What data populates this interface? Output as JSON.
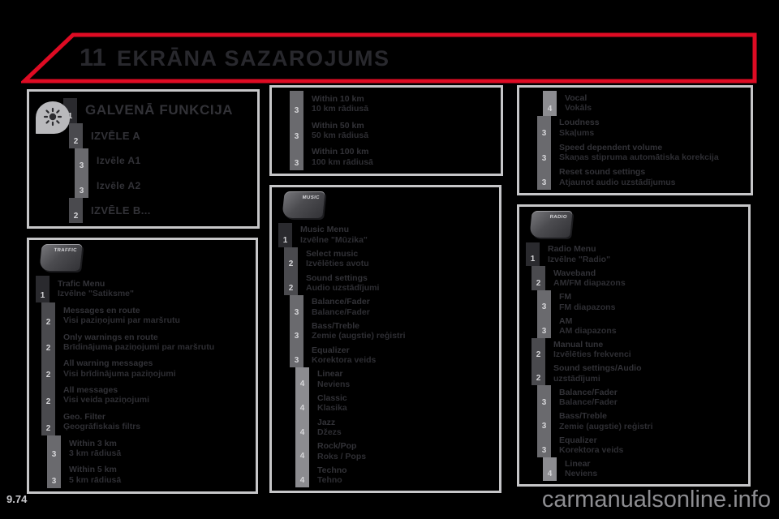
{
  "page": {
    "chapter": "11",
    "title": "EKRĀNA SAZAROJUMS",
    "page_number": "9.74",
    "watermark": "carmanualsonline.info"
  },
  "colors": {
    "accent_red": "#de0b23",
    "panel_border": "#c6c6c8",
    "level1_bar": "#2a2a2e",
    "level2_bar": "#4a4a4e",
    "level3_bar": "#6a6a6e",
    "level4_bar": "#8c8c90"
  },
  "panels": [
    {
      "name": "main-function",
      "icon": "brightness-icon",
      "items": [
        {
          "level": 1,
          "en": "GALVENĀ FUNKCIJA",
          "lv": ""
        },
        {
          "level": 2,
          "en": "IZVĒLE A",
          "lv": ""
        },
        {
          "level": 3,
          "en": "Izvēle A1",
          "lv": ""
        },
        {
          "level": 3,
          "en": "Izvēle A2",
          "lv": ""
        },
        {
          "level": 2,
          "en": "IZVĒLE B...",
          "lv": ""
        }
      ]
    },
    {
      "name": "traffic-menu",
      "key_label": "TRAFFIC",
      "items": [
        {
          "level": 1,
          "en": "Trafic Menu",
          "lv": "Izvēlne \"Satiksme\""
        },
        {
          "level": 2,
          "en": "Messages en route",
          "lv": "Visi paziņojumi par maršrutu"
        },
        {
          "level": 2,
          "en": "Only warnings en route",
          "lv": "Brīdinājuma paziņojumi par maršrutu"
        },
        {
          "level": 2,
          "en": "All warning messages",
          "lv": "Visi brīdinājuma paziņojumi"
        },
        {
          "level": 2,
          "en": "All messages",
          "lv": "Visi veida paziņojumi"
        },
        {
          "level": 2,
          "en": "Geo. Filter",
          "lv": "Ģeogrāfiskais filtrs"
        },
        {
          "level": 3,
          "en": "Within 3 km",
          "lv": "3 km rādiusā"
        },
        {
          "level": 3,
          "en": "Within 5 km",
          "lv": "5 km rādiusā"
        }
      ]
    },
    {
      "name": "traffic-menu-continued",
      "items": [
        {
          "level": 3,
          "en": "Within 10 km",
          "lv": "10 km rādiusā"
        },
        {
          "level": 3,
          "en": "Within 50 km",
          "lv": "50 km rādiusā"
        },
        {
          "level": 3,
          "en": "Within 100 km",
          "lv": "100 km rādiusā"
        }
      ]
    },
    {
      "name": "music-menu",
      "key_label": "MUSIC",
      "items": [
        {
          "level": 1,
          "en": "Music Menu",
          "lv": "Izvēlne \"Mūzika\""
        },
        {
          "level": 2,
          "en": "Select music",
          "lv": "Izvēlēties avotu"
        },
        {
          "level": 2,
          "en": "Sound settings",
          "lv": "Audio uzstādījumi"
        },
        {
          "level": 3,
          "en": "Balance/Fader",
          "lv": "Balance/Fader"
        },
        {
          "level": 3,
          "en": "Bass/Treble",
          "lv": "Zemie (augstie) reģistri"
        },
        {
          "level": 3,
          "en": "Equalizer",
          "lv": "Korektora veids"
        },
        {
          "level": 4,
          "en": "Linear",
          "lv": "Neviens"
        },
        {
          "level": 4,
          "en": "Classic",
          "lv": "Klasika"
        },
        {
          "level": 4,
          "en": "Jazz",
          "lv": "Džezs"
        },
        {
          "level": 4,
          "en": "Rock/Pop",
          "lv": "Roks / Pops"
        },
        {
          "level": 4,
          "en": "Techno",
          "lv": "Tehno"
        }
      ]
    },
    {
      "name": "music-menu-continued",
      "items": [
        {
          "level": 4,
          "en": "Vocal",
          "lv": "Vokāls"
        },
        {
          "level": 3,
          "en": "Loudness",
          "lv": "Skaļums"
        },
        {
          "level": 3,
          "en": "Speed dependent volume",
          "lv": "Skaņas stipruma automātiska korekcija"
        },
        {
          "level": 3,
          "en": "Reset sound settings",
          "lv": "Atjaunot audio uzstādījumus"
        }
      ]
    },
    {
      "name": "radio-menu",
      "key_label": "RADIO",
      "items": [
        {
          "level": 1,
          "en": "Radio Menu",
          "lv": "Izvēlne \"Radio\""
        },
        {
          "level": 2,
          "en": "Waveband",
          "lv": "AM/FM diapazons"
        },
        {
          "level": 3,
          "en": "FM",
          "lv": "FM diapazons"
        },
        {
          "level": 3,
          "en": "AM",
          "lv": "AM diapazons"
        },
        {
          "level": 2,
          "en": "Manual tune",
          "lv": "Izvēlēties frekvenci"
        },
        {
          "level": 2,
          "en": "Sound settings/Audio",
          "lv": "uzstādījumi"
        },
        {
          "level": 3,
          "en": "Balance/Fader",
          "lv": "Balance/Fader"
        },
        {
          "level": 3,
          "en": "Bass/Treble",
          "lv": "Zemie (augstie) reģistri"
        },
        {
          "level": 3,
          "en": "Equalizer",
          "lv": "Korektora veids"
        },
        {
          "level": 4,
          "en": "Linear",
          "lv": "Neviens"
        }
      ]
    }
  ]
}
